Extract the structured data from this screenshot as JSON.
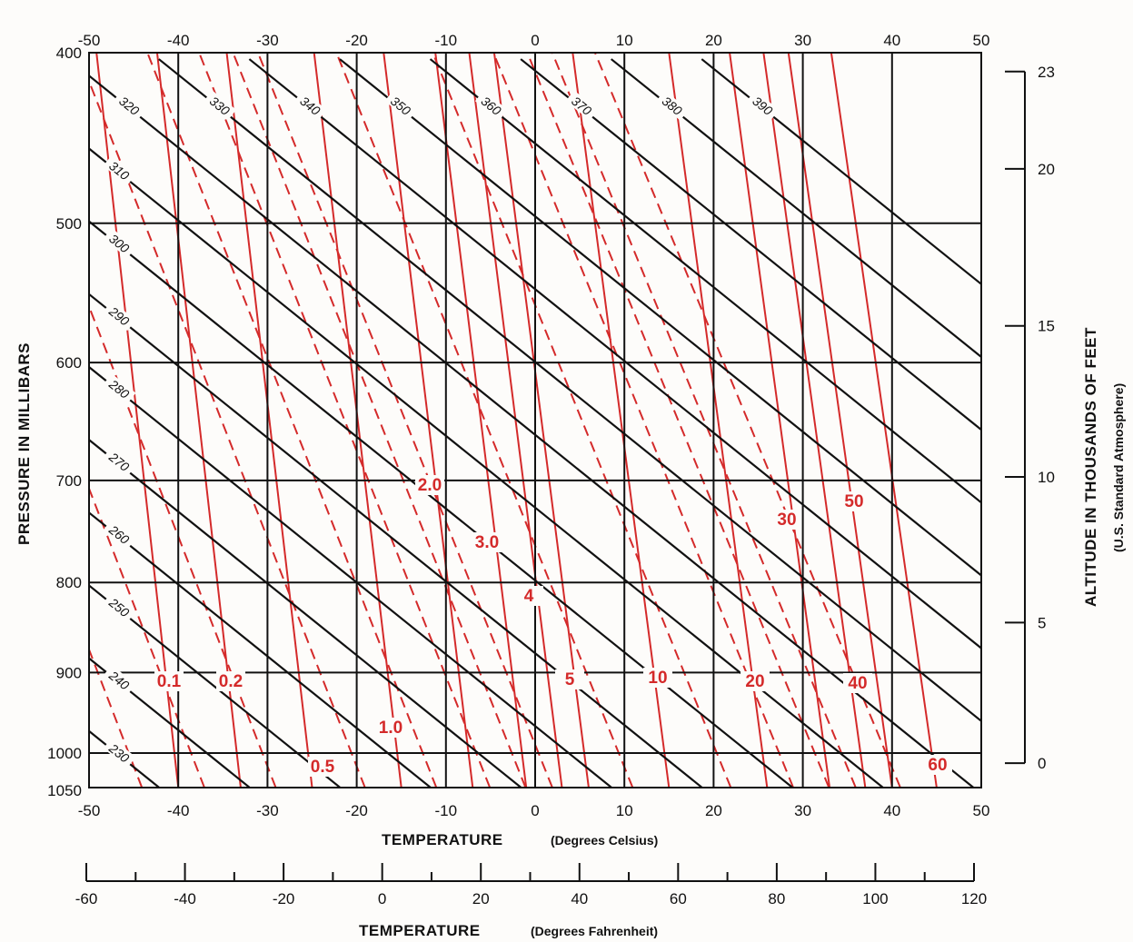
{
  "chart_data": {
    "type": "line",
    "ylim": [
      1050,
      400
    ],
    "xlim": [
      -50,
      50
    ],
    "top_x_ticks": [
      "-50",
      "-40",
      "-30",
      "-20",
      "-10",
      "0",
      "10",
      "20",
      "30",
      "40",
      "50"
    ],
    "bottom_x_ticks": [
      "-50",
      "-40",
      "-30",
      "-20",
      "-10",
      "0",
      "10",
      "20",
      "30",
      "40",
      "50"
    ],
    "pressure_ticks": [
      {
        "p": 400,
        "label": "400"
      },
      {
        "p": 500,
        "label": "500"
      },
      {
        "p": 600,
        "label": "600"
      },
      {
        "p": 700,
        "label": "700"
      },
      {
        "p": 800,
        "label": "800"
      },
      {
        "p": 900,
        "label": "900"
      },
      {
        "p": 1000,
        "label": "1000"
      },
      {
        "p": 1050,
        "label": "1050"
      }
    ],
    "xlabel_c": "TEMPERATURE",
    "xlabel_c_unit": "(Degrees Celsius)",
    "xlabel_f": "TEMPERATURE",
    "xlabel_f_unit": "(Degrees Fahrenheit)",
    "ylabel": "PRESSURE IN MILLIBARS",
    "ylabel_right": "ALTITUDE IN THOUSANDS OF FEET",
    "ylabel_right_sub": "(U.S. Standard Atmosphere)",
    "fahrenheit_ticks": [
      "-60",
      "-40",
      "-20",
      "0",
      "20",
      "40",
      "60",
      "80",
      "100",
      "120"
    ],
    "altitude_ticks": [
      {
        "kft": 0,
        "label": "0"
      },
      {
        "kft": 5,
        "label": "5"
      },
      {
        "kft": 10,
        "label": "10"
      },
      {
        "kft": 15,
        "label": "15"
      },
      {
        "kft": 20,
        "label": "20"
      },
      {
        "kft": 23,
        "label": "23"
      }
    ],
    "dry_adiabats_K": [
      "230",
      "240",
      "250",
      "260",
      "270",
      "280",
      "290",
      "300",
      "310",
      "320",
      "330",
      "340",
      "350",
      "360",
      "370",
      "380",
      "390"
    ],
    "moist_adiabats": [
      {
        "name": "0.1",
        "t1050": -40
      },
      {
        "name": "0.2",
        "t1050": -33
      },
      {
        "name": "0.5",
        "t1050": -25
      },
      {
        "name": "1.0",
        "t1050": -15
      },
      {
        "name": "2.0",
        "t1050": -7
      },
      {
        "name": "3.0",
        "t1050": -1
      },
      {
        "name": "4",
        "t1050": 3
      },
      {
        "name": "5",
        "t1050": 6
      },
      {
        "name": "10",
        "t1050": 15
      },
      {
        "name": "20",
        "t1050": 26
      },
      {
        "name": "30",
        "t1050": 33
      },
      {
        "name": "40",
        "t1050": 37
      },
      {
        "name": "50",
        "t1050": 40
      },
      {
        "name": "60",
        "t1050": 45
      }
    ],
    "colors": {
      "isopleth": "#d42a2a",
      "grid": "#111111"
    }
  }
}
